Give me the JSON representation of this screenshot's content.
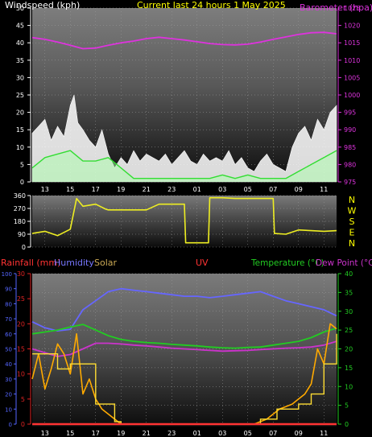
{
  "header": {
    "left_title": "Windspeed (kph)",
    "center_title": "Current last 24 hours 1 May 2025",
    "right_title": "Barometer (hpa)"
  },
  "colors": {
    "background": "#000000",
    "wind_axis": "#ffffff",
    "barometer": "#dd33dd",
    "gust": "#ffffff",
    "wind_avg": "#33dd33",
    "direction": "#eeee22",
    "rainfall": "#ff2222",
    "humidity": "#6666ff",
    "solar": "#ffaa00",
    "uv": "#ff3333",
    "temperature": "#22cc22",
    "dewpoint": "#cc33cc",
    "rain_axis": "#dd2222",
    "humidity_axis": "#5566ff",
    "temp_axis": "#22cc22"
  },
  "chart_data": [
    {
      "type": "line",
      "id": "wind-barometer",
      "x_tick_labels": [
        "13",
        "15",
        "17",
        "19",
        "21",
        "23",
        "01",
        "03",
        "05",
        "07",
        "09",
        "11"
      ],
      "left_axis": {
        "ticks": [
          0,
          5,
          10,
          15,
          20,
          25,
          30,
          35,
          40,
          45,
          50
        ],
        "ylim": [
          0,
          50
        ]
      },
      "right_axis": {
        "ticks": [
          975,
          980,
          985,
          990,
          995,
          1000,
          1005,
          1010,
          1015,
          1020,
          1025
        ],
        "ylim": [
          975,
          1025
        ]
      },
      "barometer": {
        "x": [
          0,
          1,
          2,
          3,
          4,
          5,
          6,
          7,
          8,
          9,
          10,
          11,
          12,
          13,
          14,
          15,
          16,
          17,
          18,
          19,
          20,
          21,
          22,
          23,
          24
        ],
        "y": [
          1016.5,
          1016,
          1015.2,
          1014.3,
          1013.3,
          1013.5,
          1014.3,
          1015,
          1015.5,
          1016.2,
          1016.6,
          1016.2,
          1015.8,
          1015.3,
          1014.8,
          1014.5,
          1014.4,
          1014.6,
          1015.2,
          1016,
          1016.7,
          1017.4,
          1017.9,
          1018,
          1017.6
        ]
      },
      "gust": {
        "x": [
          0,
          0.5,
          1,
          1.5,
          2,
          2.5,
          3,
          3.3,
          3.6,
          4,
          4.5,
          5,
          5.5,
          6,
          6.5,
          7,
          7.5,
          8,
          8.5,
          9,
          9.5,
          10,
          10.5,
          11,
          11.5,
          12,
          12.5,
          13,
          13.5,
          14,
          14.5,
          15,
          15.5,
          16,
          16.5,
          17,
          17.5,
          18,
          18.5,
          19,
          19.5,
          20,
          20.5,
          21,
          21.5,
          22,
          22.5,
          23,
          23.5,
          24
        ],
        "y": [
          14,
          16,
          18,
          12,
          16,
          13,
          22,
          25,
          17,
          15,
          12,
          10,
          15,
          8,
          4,
          7,
          5,
          9,
          6,
          8,
          7,
          6,
          8,
          5,
          7,
          9,
          6,
          5,
          8,
          6,
          7,
          6,
          9,
          5,
          7,
          4,
          3,
          6,
          8,
          5,
          4,
          3,
          10,
          14,
          16,
          12,
          18,
          15,
          20,
          22
        ]
      },
      "wind_avg": {
        "x": [
          0,
          1,
          2,
          3,
          4,
          5,
          6,
          7,
          8,
          9,
          10,
          11,
          12,
          13,
          14,
          15,
          16,
          17,
          18,
          19,
          20,
          21,
          22,
          23,
          24
        ],
        "y": [
          4,
          7,
          8,
          9,
          6,
          6,
          7,
          4,
          1,
          1,
          1,
          1,
          1,
          1,
          1,
          2,
          1,
          2,
          1,
          1,
          1,
          3,
          5,
          7,
          9
        ]
      }
    },
    {
      "type": "line",
      "id": "wind-direction",
      "x_tick_labels": [
        "13",
        "15",
        "17",
        "19",
        "21",
        "23",
        "01",
        "03",
        "05",
        "07",
        "09",
        "11"
      ],
      "left_axis": {
        "ticks": [
          0,
          90,
          180,
          270,
          360
        ],
        "ylim": [
          0,
          360
        ]
      },
      "right_labels": [
        "N",
        "W",
        "S",
        "E",
        "N"
      ],
      "direction": {
        "x": [
          0,
          1,
          2,
          3,
          3.5,
          4,
          5,
          5.8,
          6,
          7,
          8,
          9,
          10,
          11,
          12,
          12.1,
          13,
          13.9,
          14,
          14.1,
          15,
          16,
          17,
          18,
          19,
          19.1,
          20,
          21,
          22,
          23,
          24
        ],
        "y": [
          95,
          110,
          80,
          125,
          340,
          285,
          300,
          265,
          260,
          260,
          260,
          260,
          300,
          300,
          300,
          30,
          30,
          30,
          345,
          345,
          345,
          340,
          340,
          340,
          340,
          95,
          90,
          120,
          115,
          110,
          115
        ]
      }
    },
    {
      "type": "line",
      "id": "rain-humidity-solar-uv-temperature",
      "x_tick_labels": [
        "13",
        "15",
        "17",
        "19",
        "21",
        "23",
        "01",
        "03",
        "05",
        "07",
        "09",
        "11"
      ],
      "left_axis_rain": {
        "ticks": [
          0,
          5,
          10,
          15,
          20,
          25,
          30
        ],
        "ylim": [
          0,
          30
        ]
      },
      "left_axis_humidity": {
        "ticks": [
          0,
          10,
          20,
          30,
          40,
          50,
          60,
          70,
          80,
          90,
          100
        ],
        "ylim": [
          0,
          100
        ]
      },
      "right_axis_temperature": {
        "ticks": [
          0,
          5,
          10,
          15,
          20,
          25,
          30,
          35,
          40
        ],
        "ylim": [
          0,
          40
        ]
      },
      "legend": [
        "Rainfall (mm)",
        "Humidity",
        "Solar",
        "UV",
        "Temperature (°C)",
        "Dew Point (°C)"
      ],
      "humidity": {
        "x": [
          0,
          1,
          2,
          3,
          4,
          5,
          6,
          7,
          8,
          9,
          10,
          11,
          12,
          13,
          14,
          15,
          16,
          17,
          18,
          19,
          20,
          21,
          22,
          23,
          24
        ],
        "y": [
          68,
          64,
          62,
          63,
          76,
          82,
          88,
          90,
          89,
          88,
          87,
          86,
          85,
          85,
          84,
          85,
          86,
          87,
          88,
          85,
          82,
          80,
          78,
          76,
          72
        ]
      },
      "temperature": {
        "x": [
          0,
          1,
          2,
          3,
          4,
          5,
          6,
          7,
          8,
          9,
          10,
          11,
          12,
          13,
          14,
          15,
          16,
          17,
          18,
          19,
          20,
          21,
          22,
          23,
          24
        ],
        "y": [
          24,
          24.5,
          25,
          25.8,
          26.5,
          25,
          23.5,
          22.5,
          22,
          21.7,
          21.5,
          21.2,
          21,
          20.8,
          20.5,
          20.3,
          20.2,
          20.4,
          20.5,
          21,
          21.5,
          22,
          23,
          24.5,
          25.5
        ]
      },
      "dewpoint": {
        "x": [
          0,
          1,
          2,
          3,
          4,
          5,
          6,
          7,
          8,
          9,
          10,
          11,
          12,
          13,
          14,
          15,
          16,
          17,
          18,
          19,
          20,
          21,
          22,
          23,
          24
        ],
        "y": [
          20,
          19,
          18,
          18.5,
          20,
          21.5,
          21.5,
          21.3,
          21,
          20.8,
          20.5,
          20.2,
          20,
          19.8,
          19.6,
          19.4,
          19.5,
          19.6,
          19.8,
          20,
          20.2,
          20.3,
          20.5,
          21,
          22
        ]
      },
      "solar": {
        "x": [
          0,
          0.5,
          1,
          1.5,
          2,
          2.5,
          3,
          3.5,
          4,
          4.5,
          5,
          5.5,
          6,
          6.5,
          7,
          17,
          17.5,
          18,
          18.5,
          19,
          19.5,
          20,
          20.5,
          21,
          21.5,
          22,
          22.5,
          23,
          23.5,
          24
        ],
        "y": [
          9,
          14,
          7,
          11,
          16,
          14,
          10,
          18,
          6,
          9,
          5,
          3,
          2,
          1,
          0,
          0,
          0,
          0.5,
          1,
          2,
          3,
          3.5,
          4,
          5,
          6,
          8,
          15,
          12,
          20,
          19
        ]
      },
      "solar_step": {
        "x": [
          0,
          2,
          3,
          5,
          6.5,
          7,
          17,
          18,
          19.3,
          21,
          22,
          23,
          24
        ],
        "y": [
          14,
          11,
          12,
          4,
          0.5,
          0,
          0,
          1,
          3,
          4,
          6,
          12,
          18
        ]
      },
      "uv": {
        "x": [
          0,
          24
        ],
        "y": [
          0,
          0
        ]
      }
    }
  ]
}
